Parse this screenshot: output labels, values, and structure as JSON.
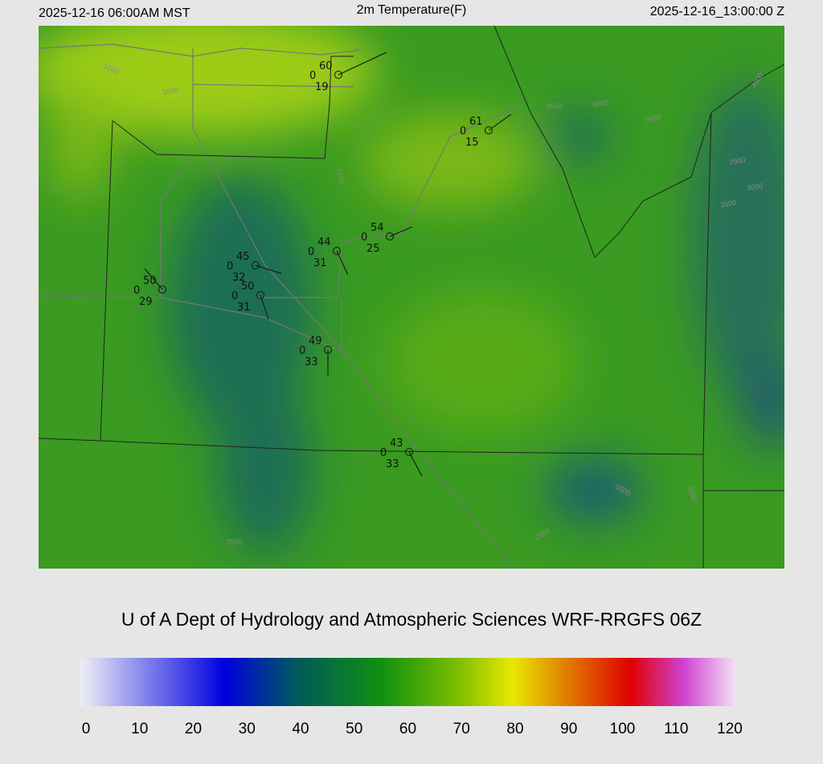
{
  "header": {
    "left": "2025-12-16 06:00AM MST",
    "title": "2m Temperature(F)",
    "right": "2025-12-16_13:00:00 Z"
  },
  "stations": [
    {
      "temperature": 60,
      "wind": 0,
      "dewpoint": 19
    },
    {
      "temperature": 61,
      "wind": 0,
      "dewpoint": 15
    },
    {
      "temperature": 54,
      "wind": 0,
      "dewpoint": 25
    },
    {
      "temperature": 44,
      "wind": 0,
      "dewpoint": 31
    },
    {
      "temperature": 45,
      "wind": 0,
      "dewpoint": 32
    },
    {
      "temperature": 50,
      "wind": 0,
      "dewpoint": 29
    },
    {
      "temperature": 50,
      "wind": 0,
      "dewpoint": 31
    },
    {
      "temperature": 49,
      "wind": 0,
      "dewpoint": 33
    },
    {
      "temperature": 43,
      "wind": 0,
      "dewpoint": 33
    }
  ],
  "contour_labels": [
    1000,
    1500,
    1500,
    4500,
    4000,
    3500,
    2500,
    3000,
    3500,
    4000,
    5500,
    3000,
    2000,
    2500
  ],
  "credit": "U of A Dept of Hydrology and Atmospheric Sciences WRF-RRGFS 06Z",
  "colorbar": {
    "range": [
      0,
      120
    ],
    "ticks": [
      0,
      10,
      20,
      30,
      40,
      50,
      60,
      70,
      80,
      90,
      100,
      110,
      120
    ]
  }
}
